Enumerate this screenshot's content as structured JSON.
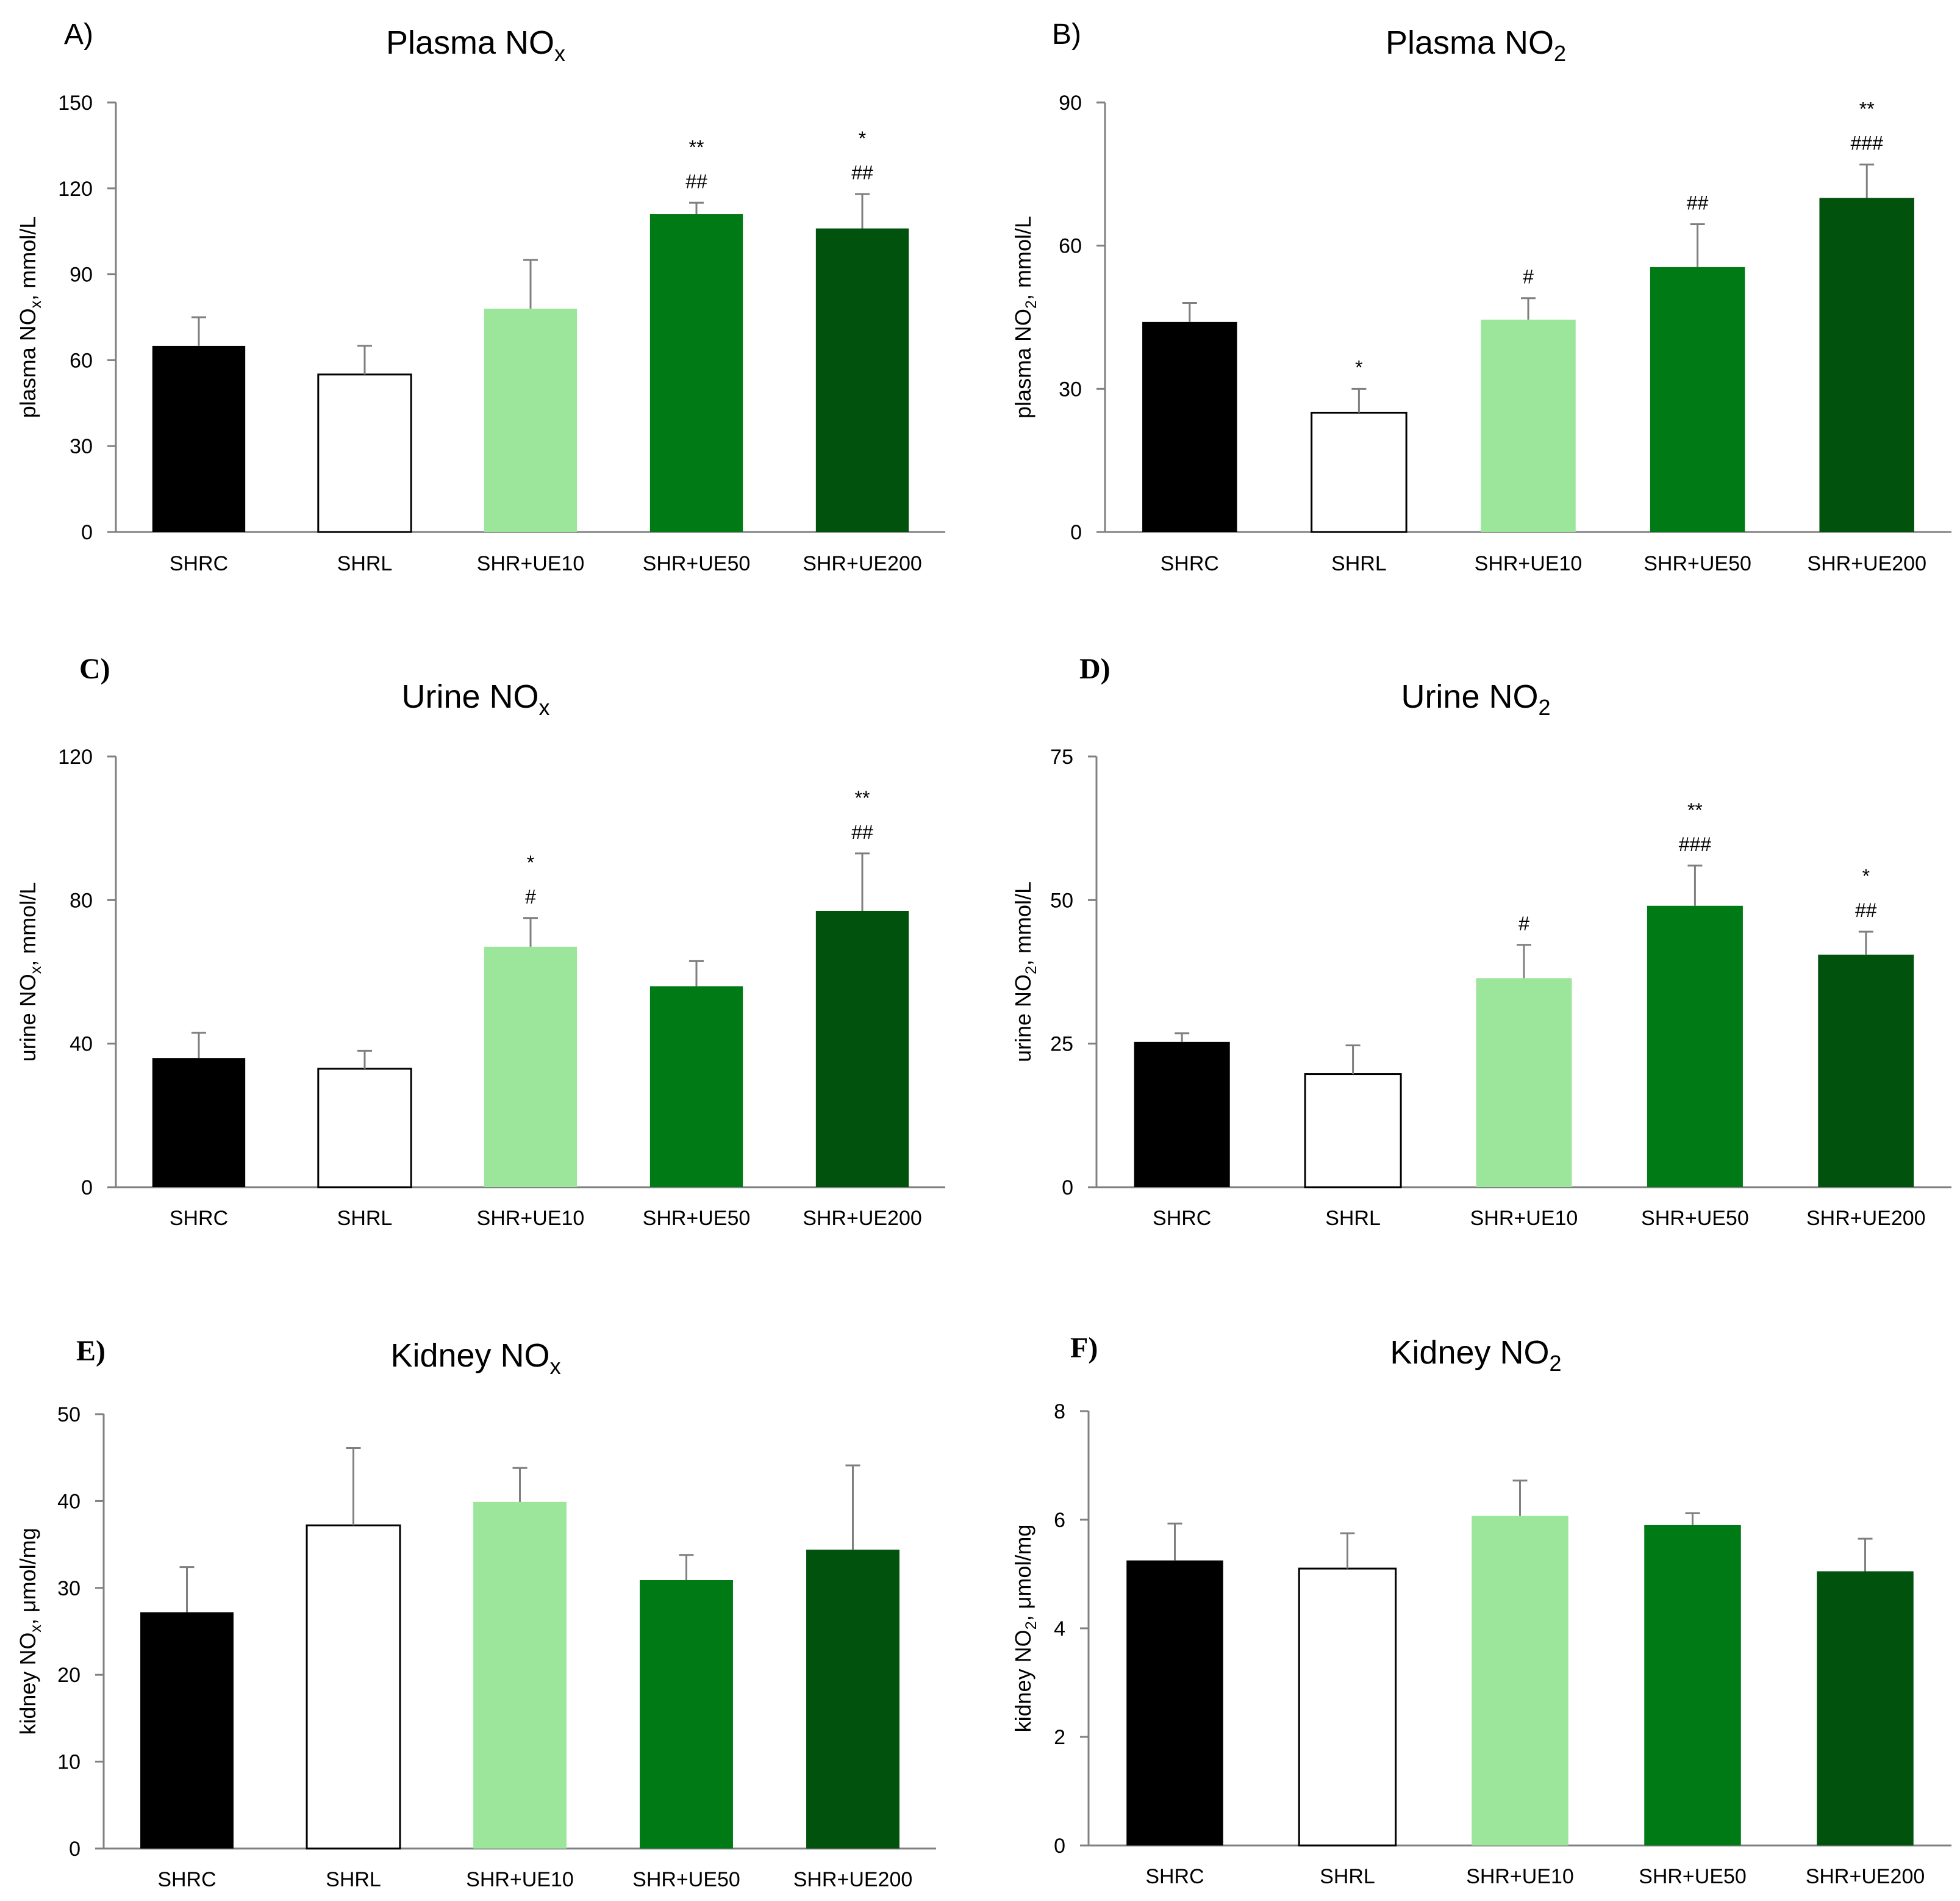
{
  "colors": {
    "SHRC": "#000000",
    "SHRL": "#ffffff",
    "SHR+UE10": "#9ce69c",
    "SHR+UE50": "#007a14",
    "SHR+UE200": "#00520c",
    "axis": "#808080",
    "error_bar": "#7f7f7f"
  },
  "chart_data": [
    {
      "type": "bar",
      "panel_label": "A)",
      "title": "Plasma NO",
      "title_sub": "x",
      "ylabel": "plasma NO",
      "ylabel_sub": "x",
      "ylabel_unit": ", mmol/L",
      "categories": [
        "SHRC",
        "SHRL",
        "SHR+UE10",
        "SHR+UE50",
        "SHR+UE200"
      ],
      "values": [
        65,
        55,
        78,
        111,
        106
      ],
      "errors": [
        10,
        10,
        17,
        4,
        12
      ],
      "annotations": [
        [],
        [],
        [],
        [
          "**",
          "##"
        ],
        [
          "*",
          "##"
        ]
      ],
      "ylim": [
        0,
        150
      ],
      "yticks": [
        0,
        30,
        60,
        90,
        120,
        150
      ]
    },
    {
      "type": "bar",
      "panel_label": "B)",
      "title": "Plasma NO",
      "title_sub": "2",
      "ylabel": "plasma NO",
      "ylabel_sub": "2",
      "ylabel_unit": ", mmol/L",
      "categories": [
        "SHRC",
        "SHRL",
        "SHR+UE10",
        "SHR+UE50",
        "SHR+UE200"
      ],
      "values": [
        44,
        25,
        44.5,
        55.5,
        70
      ],
      "errors": [
        4,
        5,
        4.5,
        9,
        7
      ],
      "annotations": [
        [],
        [
          "*"
        ],
        [
          "#"
        ],
        [
          "##"
        ],
        [
          "**",
          "###"
        ]
      ],
      "ylim": [
        0,
        90
      ],
      "yticks": [
        0,
        30,
        60,
        90
      ]
    },
    {
      "type": "bar",
      "panel_label": "C)",
      "title": "Urine NO",
      "title_sub": "x",
      "ylabel": "urine NO",
      "ylabel_sub": "x",
      "ylabel_unit": ", mmol/L",
      "categories": [
        "SHRC",
        "SHRL",
        "SHR+UE10",
        "SHR+UE50",
        "SHR+UE200"
      ],
      "values": [
        36,
        33,
        67,
        56,
        77
      ],
      "errors": [
        7,
        5,
        8,
        7,
        16
      ],
      "annotations": [
        [],
        [],
        [
          "*",
          "#"
        ],
        [],
        [
          "**",
          "##"
        ]
      ],
      "ylim": [
        0,
        120
      ],
      "yticks": [
        0,
        40,
        80,
        120
      ]
    },
    {
      "type": "bar",
      "panel_label": "D)",
      "title": "Urine NO",
      "title_sub": "2",
      "ylabel": "urine NO",
      "ylabel_sub": "2",
      "ylabel_unit": ", mmol/L",
      "categories": [
        "SHRC",
        "SHRL",
        "SHR+UE10",
        "SHR+UE50",
        "SHR+UE200"
      ],
      "values": [
        25.3,
        19.7,
        36.4,
        49,
        40.5
      ],
      "errors": [
        1.5,
        5,
        5.8,
        7,
        4
      ],
      "annotations": [
        [],
        [],
        [
          "#"
        ],
        [
          "**",
          "###"
        ],
        [
          "*",
          "##"
        ]
      ],
      "ylim": [
        0,
        75
      ],
      "yticks": [
        0,
        25,
        50,
        75
      ]
    },
    {
      "type": "bar",
      "panel_label": "E)",
      "title": "Kidney NO",
      "title_sub": "x",
      "ylabel": "kidney NO",
      "ylabel_sub": "x",
      "ylabel_unit": ", μmol/mg",
      "categories": [
        "SHRC",
        "SHRL",
        "SHR+UE10",
        "SHR+UE50",
        "SHR+UE200"
      ],
      "values": [
        27.2,
        37.2,
        39.9,
        30.9,
        34.4
      ],
      "errors": [
        5.2,
        8.9,
        3.9,
        2.9,
        9.7
      ],
      "annotations": [
        [],
        [],
        [],
        [],
        []
      ],
      "ylim": [
        0,
        50
      ],
      "yticks": [
        0,
        10,
        20,
        30,
        40,
        50
      ]
    },
    {
      "type": "bar",
      "panel_label": "F)",
      "title": "Kidney NO",
      "title_sub": "2",
      "ylabel": "kidney NO",
      "ylabel_sub": "2",
      "ylabel_unit": ", μmol/mg",
      "categories": [
        "SHRC",
        "SHRL",
        "SHR+UE10",
        "SHR+UE50",
        "SHR+UE200"
      ],
      "values": [
        5.25,
        5.1,
        6.07,
        5.9,
        5.05
      ],
      "errors": [
        0.68,
        0.65,
        0.65,
        0.22,
        0.6
      ],
      "annotations": [
        [],
        [],
        [],
        [],
        []
      ],
      "ylim": [
        0,
        8
      ],
      "yticks": [
        0,
        2,
        4,
        6,
        8
      ]
    }
  ]
}
